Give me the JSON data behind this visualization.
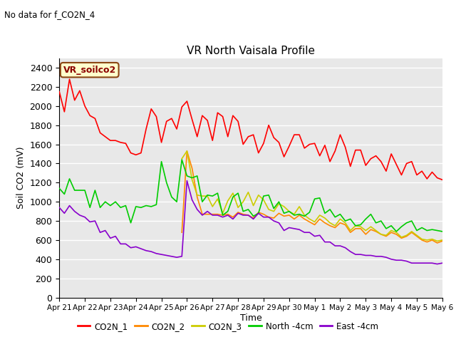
{
  "title": "VR North Vaisala Profile",
  "subtitle": "No data for f_CO2N_4",
  "ylabel": "Soil CO2 (mV)",
  "xlabel": "Time",
  "box_label": "VR_soilco2",
  "ylim": [
    0,
    2500
  ],
  "yticks": [
    0,
    200,
    400,
    600,
    800,
    1000,
    1200,
    1400,
    1600,
    1800,
    2000,
    2200,
    2400
  ],
  "x_tick_labels": [
    "Apr 21",
    "Apr 22",
    "Apr 23",
    "Apr 24",
    "Apr 25",
    "Apr 26",
    "Apr 27",
    "Apr 28",
    "Apr 29",
    "Apr 30",
    "May 1",
    "May 2",
    "May 3",
    "May 4",
    "May 5",
    "May 6"
  ],
  "background_color": "#e8e8e8",
  "grid_color": "#ffffff",
  "series": {
    "CO2N_1": {
      "color": "#ff0000",
      "x": [
        0,
        0.2,
        0.4,
        0.6,
        0.8,
        1.0,
        1.2,
        1.4,
        1.6,
        1.8,
        2.0,
        2.2,
        2.4,
        2.6,
        2.8,
        3.0,
        3.2,
        3.4,
        3.6,
        3.8,
        4.0,
        4.2,
        4.4,
        4.6,
        4.8,
        5.0,
        5.2,
        5.4,
        5.6,
        5.8,
        6.0,
        6.2,
        6.4,
        6.6,
        6.8,
        7.0,
        7.2,
        7.4,
        7.6,
        7.8,
        8.0,
        8.2,
        8.4,
        8.6,
        8.8,
        9.0,
        9.2,
        9.4,
        9.6,
        9.8,
        10.0,
        10.2,
        10.4,
        10.6,
        10.8,
        11.0,
        11.2,
        11.4,
        11.6,
        11.8,
        12.0,
        12.2,
        12.4,
        12.6,
        12.8,
        13.0,
        13.2,
        13.4,
        13.6,
        13.8,
        14.0,
        14.2,
        14.4,
        14.6,
        14.8,
        15.0
      ],
      "y": [
        2150,
        1940,
        2280,
        2060,
        2160,
        2000,
        1900,
        1870,
        1720,
        1680,
        1640,
        1640,
        1620,
        1610,
        1510,
        1490,
        1510,
        1760,
        1970,
        1890,
        1620,
        1840,
        1870,
        1760,
        1990,
        2050,
        1860,
        1680,
        1900,
        1850,
        1640,
        1930,
        1890,
        1680,
        1900,
        1840,
        1600,
        1680,
        1700,
        1510,
        1610,
        1800,
        1670,
        1620,
        1470,
        1580,
        1700,
        1700,
        1560,
        1600,
        1610,
        1480,
        1590,
        1420,
        1530,
        1700,
        1570,
        1370,
        1540,
        1540,
        1380,
        1450,
        1480,
        1420,
        1320,
        1500,
        1390,
        1280,
        1400,
        1420,
        1280,
        1320,
        1240,
        1310,
        1250,
        1230
      ]
    },
    "CO2N_2": {
      "color": "#ff8800",
      "x": [
        4.8,
        5.0,
        5.2,
        5.4,
        5.6,
        5.8,
        6.0,
        6.2,
        6.4,
        6.6,
        6.8,
        7.0,
        7.2,
        7.4,
        7.6,
        7.8,
        8.0,
        8.2,
        8.4,
        8.6,
        8.8,
        9.0,
        9.2,
        9.4,
        9.6,
        9.8,
        10.0,
        10.2,
        10.4,
        10.6,
        10.8,
        11.0,
        11.2,
        11.4,
        11.6,
        11.8,
        12.0,
        12.2,
        12.4,
        12.6,
        12.8,
        13.0,
        13.2,
        13.4,
        13.6,
        13.8,
        14.0,
        14.2,
        14.4,
        14.6,
        14.8,
        15.0
      ],
      "y": [
        680,
        1530,
        1350,
        1050,
        870,
        870,
        870,
        870,
        860,
        870,
        840,
        890,
        870,
        860,
        830,
        890,
        870,
        840,
        830,
        880,
        850,
        860,
        820,
        860,
        820,
        790,
        760,
        820,
        780,
        750,
        730,
        780,
        760,
        680,
        720,
        720,
        660,
        710,
        690,
        660,
        640,
        680,
        660,
        620,
        640,
        680,
        640,
        600,
        580,
        600,
        570,
        590
      ]
    },
    "CO2N_3": {
      "color": "#cccc00",
      "x": [
        4.8,
        5.0,
        5.2,
        5.4,
        5.6,
        5.8,
        6.0,
        6.2,
        6.4,
        6.6,
        6.8,
        7.0,
        7.2,
        7.4,
        7.6,
        7.8,
        8.0,
        8.2,
        8.4,
        8.6,
        8.8,
        9.0,
        9.2,
        9.4,
        9.6,
        9.8,
        10.0,
        10.2,
        10.4,
        10.6,
        10.8,
        11.0,
        11.2,
        11.4,
        11.6,
        11.8,
        12.0,
        12.2,
        12.4,
        12.6,
        12.8,
        13.0,
        13.2,
        13.4,
        13.6,
        13.8,
        14.0,
        14.2,
        14.4,
        14.6,
        14.8,
        15.0
      ],
      "y": [
        1450,
        1530,
        1230,
        1070,
        1060,
        1060,
        950,
        1030,
        880,
        1010,
        1090,
        940,
        1000,
        1100,
        960,
        1070,
        1020,
        920,
        900,
        980,
        950,
        900,
        870,
        950,
        860,
        820,
        790,
        860,
        830,
        780,
        750,
        820,
        780,
        700,
        750,
        740,
        700,
        740,
        700,
        660,
        650,
        700,
        680,
        630,
        650,
        690,
        650,
        610,
        600,
        610,
        590,
        600
      ]
    },
    "North_4cm": {
      "color": "#00cc00",
      "x": [
        0,
        0.2,
        0.4,
        0.6,
        0.8,
        1.0,
        1.2,
        1.4,
        1.6,
        1.8,
        2.0,
        2.2,
        2.4,
        2.6,
        2.8,
        3.0,
        3.2,
        3.4,
        3.6,
        3.8,
        4.0,
        4.2,
        4.4,
        4.6,
        4.8,
        5.0,
        5.2,
        5.4,
        5.6,
        5.8,
        6.0,
        6.2,
        6.4,
        6.6,
        6.8,
        7.0,
        7.2,
        7.4,
        7.6,
        7.8,
        8.0,
        8.2,
        8.4,
        8.6,
        8.8,
        9.0,
        9.2,
        9.4,
        9.6,
        9.8,
        10.0,
        10.2,
        10.4,
        10.6,
        10.8,
        11.0,
        11.2,
        11.4,
        11.6,
        11.8,
        12.0,
        12.2,
        12.4,
        12.6,
        12.8,
        13.0,
        13.2,
        13.4,
        13.6,
        13.8,
        14.0,
        14.2,
        14.4,
        14.6,
        14.8,
        15.0
      ],
      "y": [
        1140,
        1080,
        1240,
        1120,
        1120,
        1120,
        940,
        1120,
        940,
        1000,
        960,
        1000,
        940,
        960,
        780,
        950,
        940,
        960,
        950,
        970,
        1420,
        1200,
        1050,
        1000,
        1440,
        1270,
        1250,
        1270,
        1000,
        1070,
        1060,
        1090,
        860,
        900,
        1050,
        1090,
        900,
        920,
        850,
        880,
        1060,
        1070,
        930,
        1000,
        880,
        900,
        860,
        870,
        850,
        890,
        1030,
        1040,
        880,
        920,
        840,
        870,
        800,
        820,
        750,
        760,
        820,
        870,
        780,
        800,
        720,
        750,
        690,
        740,
        780,
        800,
        700,
        730,
        700,
        710,
        700,
        690
      ]
    },
    "East_4cm": {
      "color": "#8800cc",
      "x": [
        0,
        0.2,
        0.4,
        0.6,
        0.8,
        1.0,
        1.2,
        1.4,
        1.6,
        1.8,
        2.0,
        2.2,
        2.4,
        2.6,
        2.8,
        3.0,
        3.2,
        3.4,
        3.6,
        3.8,
        4.0,
        4.2,
        4.4,
        4.6,
        4.8,
        5.0,
        5.2,
        5.4,
        5.6,
        5.8,
        6.0,
        6.2,
        6.4,
        6.6,
        6.8,
        7.0,
        7.2,
        7.4,
        7.6,
        7.8,
        8.0,
        8.2,
        8.4,
        8.6,
        8.8,
        9.0,
        9.2,
        9.4,
        9.6,
        9.8,
        10.0,
        10.2,
        10.4,
        10.6,
        10.8,
        11.0,
        11.2,
        11.4,
        11.6,
        11.8,
        12.0,
        12.2,
        12.4,
        12.6,
        12.8,
        13.0,
        13.2,
        13.4,
        13.6,
        13.8,
        14.0,
        14.2,
        14.4,
        14.6,
        14.8,
        15.0
      ],
      "y": [
        940,
        880,
        960,
        900,
        860,
        840,
        790,
        800,
        680,
        700,
        620,
        640,
        560,
        560,
        520,
        530,
        510,
        490,
        480,
        460,
        450,
        440,
        430,
        420,
        430,
        1220,
        1020,
        920,
        860,
        900,
        860,
        860,
        840,
        860,
        820,
        880,
        860,
        860,
        820,
        880,
        840,
        840,
        800,
        780,
        700,
        730,
        720,
        710,
        680,
        680,
        640,
        650,
        580,
        580,
        540,
        540,
        520,
        480,
        450,
        450,
        440,
        440,
        430,
        430,
        420,
        400,
        390,
        390,
        380,
        360,
        360,
        360,
        360,
        360,
        350,
        360
      ]
    }
  },
  "legend": [
    {
      "label": "CO2N_1",
      "color": "#ff0000"
    },
    {
      "label": "CO2N_2",
      "color": "#ff8800"
    },
    {
      "label": "CO2N_3",
      "color": "#cccc00"
    },
    {
      "label": "North -4cm",
      "color": "#00cc00"
    },
    {
      "label": "East -4cm",
      "color": "#8800cc"
    }
  ]
}
